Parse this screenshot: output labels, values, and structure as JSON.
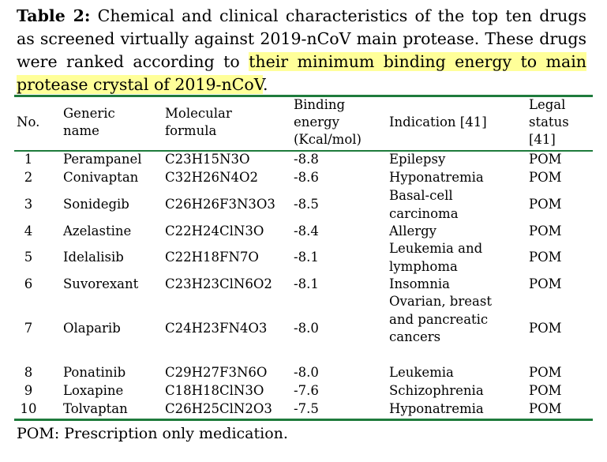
{
  "caption": {
    "label": "Table 2:",
    "text": " Chemical and clinical characteristics of the top ten drugs as screened virtually against 2019-nCoV main protease. These drugs were ranked according to ",
    "highlight": "their minimum binding energy to main protease crystal of 2019-nCoV",
    "end": "."
  },
  "table": {
    "headers": {
      "no": "No.",
      "name": "Generic name",
      "formula": "Molecular formula",
      "binding": "Binding energy (Kcal/mol)",
      "indication": "Indication [41]",
      "legal": "Legal status [41]"
    },
    "rows": [
      {
        "no": "1",
        "name": "Perampanel",
        "formula": "C23H15N3O",
        "energy": "-8.8",
        "indication": "Epilepsy",
        "legal": "POM"
      },
      {
        "no": "2",
        "name": "Conivaptan",
        "formula": "C32H26N4O2",
        "energy": "-8.6",
        "indication": "Hyponatremia",
        "legal": "POM"
      },
      {
        "no": "3",
        "name": "Sonidegib",
        "formula": "C26H26F3N3O3",
        "energy": "-8.5",
        "indication": "Basal-cell carcinoma",
        "legal": "POM"
      },
      {
        "no": "4",
        "name": "Azelastine",
        "formula": "C22H24ClN3O",
        "energy": "-8.4",
        "indication": "Allergy",
        "legal": "POM"
      },
      {
        "no": "5",
        "name": "Idelalisib",
        "formula": "C22H18FN7O",
        "energy": "-8.1",
        "indication": "Leukemia and lymphoma",
        "legal": "POM"
      },
      {
        "no": "6",
        "name": "Suvorexant",
        "formula": "C23H23ClN6O2",
        "energy": "-8.1",
        "indication": "Insomnia",
        "legal": "POM"
      },
      {
        "no": "7",
        "name": "Olaparib",
        "formula": "C24H23FN4O3",
        "energy": "-8.0",
        "indication": "Ovarian, breast and pancreatic cancers",
        "legal": "POM"
      },
      {
        "no": "8",
        "name": "Ponatinib",
        "formula": "C29H27F3N6O",
        "energy": "-8.0",
        "indication": "Leukemia",
        "legal": "POM"
      },
      {
        "no": "9",
        "name": "Loxapine",
        "formula": "C18H18ClN3O",
        "energy": "-7.6",
        "indication": "Schizophrenia",
        "legal": "POM"
      },
      {
        "no": "10",
        "name": "Tolvaptan",
        "formula": "C26H25ClN2O3",
        "energy": "-7.5",
        "indication": "Hyponatremia",
        "legal": "POM"
      }
    ]
  },
  "footnote": "POM: Prescription only medication."
}
